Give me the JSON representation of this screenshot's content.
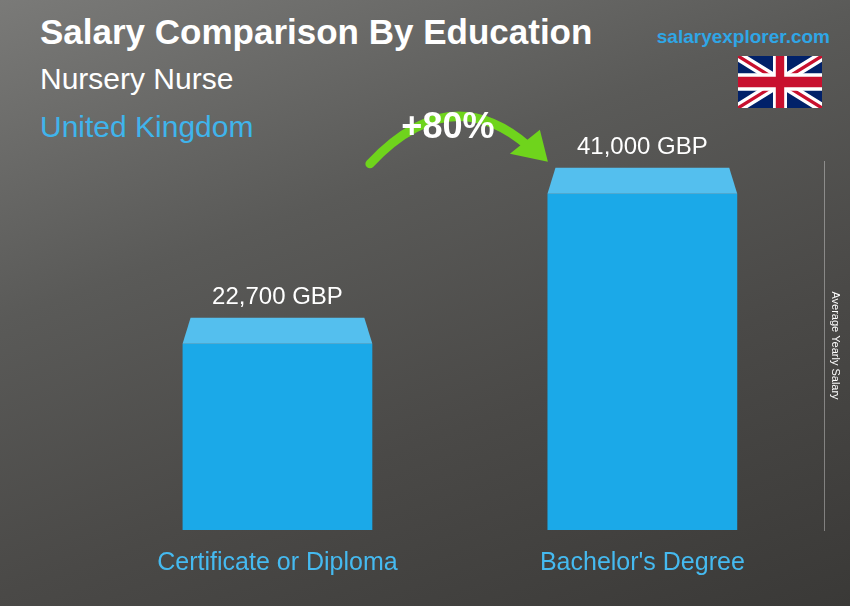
{
  "chart_data": {
    "type": "bar",
    "title": "Salary Comparison By Education",
    "subtitle": "Nursery Nurse",
    "location": "United Kingdom",
    "source": "salaryexplorer.com",
    "y_label": "Average Yearly Salary",
    "annotations": [
      {
        "text": "+80%"
      }
    ],
    "categories": [
      "Certificate or Diploma",
      "Bachelor's Degree"
    ],
    "values": [
      22700,
      41000
    ],
    "value_labels": [
      "22,700 GBP",
      "41,000 GBP"
    ],
    "color": "#1ba9e8",
    "ylim": [
      0,
      45000
    ],
    "grid": false,
    "data_labels": true,
    "tick_labels": "x"
  }
}
